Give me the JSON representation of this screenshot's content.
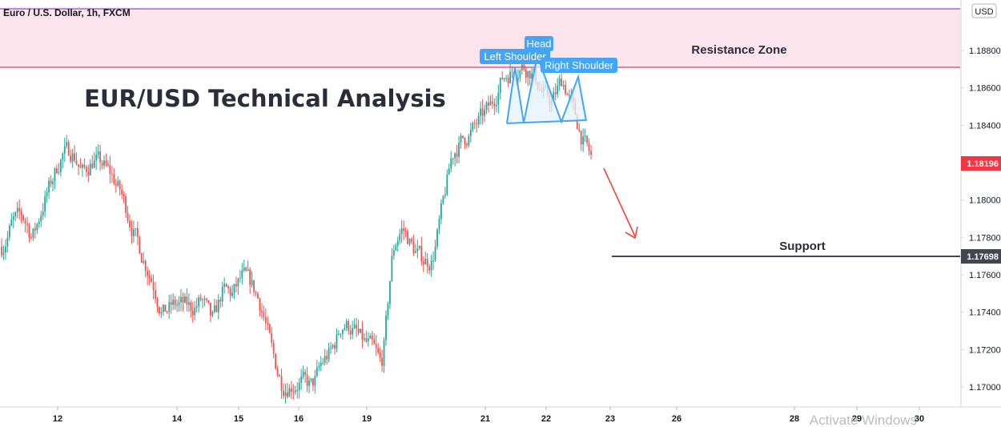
{
  "header": {
    "symbol": "Euro / U.S. Dollar, 1h, FXCM",
    "currency_button": "USD"
  },
  "annotations": {
    "title": "EUR/USD Technical Analysis",
    "resistance_label": "Resistance Zone",
    "support_label": "Support",
    "left_shoulder": "Left Shoulder",
    "head": "Head",
    "right_shoulder": "Right Shoulder"
  },
  "watermark": "Activate Windows",
  "colors": {
    "bull": "#26a69a",
    "bear": "#ef5350",
    "zone_fill": "#fce4ec",
    "zone_border": "#c2185b",
    "zone_top_border": "#7b1fa2",
    "pattern": "#42a5f5",
    "pattern_fill": "#e3f2fd",
    "arrow": "#f44336",
    "support_line": "#434651",
    "price_badge": "#f23645",
    "support_badge": "#434651"
  },
  "chart_data": {
    "type": "candlestick",
    "title": "Euro / U.S. Dollar, 1h, FXCM",
    "ylim": [
      1.1688,
      1.1906
    ],
    "y_ticks": [
      "1.17000",
      "1.17200",
      "1.17400",
      "1.17600",
      "1.17800",
      "1.18000",
      "1.18200",
      "1.18400",
      "1.18600",
      "1.18800"
    ],
    "x_ticks": [
      "12",
      "14",
      "15",
      "16",
      "19",
      "21",
      "22",
      "23",
      "26",
      "28",
      "29",
      "30"
    ],
    "current_price": {
      "value": 1.18196,
      "label": "1.18196"
    },
    "support": {
      "value": 1.17698,
      "label": "1.17698"
    },
    "resistance_zone": [
      1.1871,
      1.1903
    ],
    "trend_path": [
      1.1775,
      1.1789,
      1.1792,
      1.1779,
      1.1798,
      1.1812,
      1.1826,
      1.1826,
      1.1813,
      1.1822,
      1.1819,
      1.1812,
      1.1801,
      1.1784,
      1.1769,
      1.1756,
      1.1738,
      1.1744,
      1.1744,
      1.1742,
      1.1747,
      1.1733,
      1.1753,
      1.1749,
      1.176,
      1.1754,
      1.1741,
      1.1716,
      1.17,
      1.1701,
      1.1703,
      1.17,
      1.1714,
      1.172,
      1.1735,
      1.1731,
      1.1724,
      1.1721,
      1.171,
      1.1776,
      1.1786,
      1.1774,
      1.1768,
      1.1767,
      1.1797,
      1.1826,
      1.1832,
      1.1837,
      1.1845,
      1.1852,
      1.1866,
      1.1869,
      1.1872,
      1.1868,
      1.1857,
      1.1852,
      1.1866,
      1.1849,
      1.1832,
      1.1821
    ],
    "series": [
      {
        "name": "EURUSD",
        "count": 300
      }
    ]
  }
}
